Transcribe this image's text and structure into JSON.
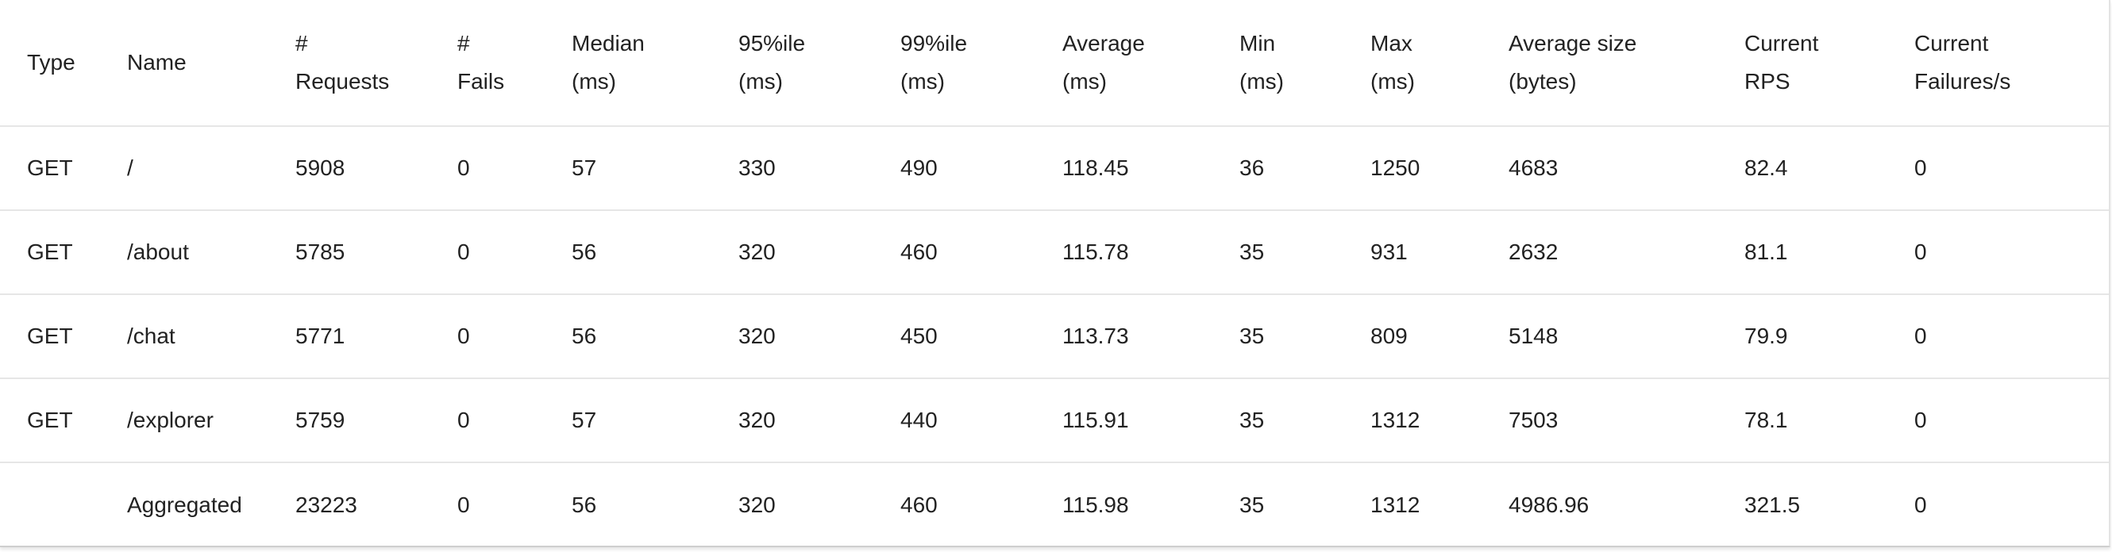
{
  "table": {
    "headers": [
      {
        "line1": "Type",
        "line2": ""
      },
      {
        "line1": "Name",
        "line2": ""
      },
      {
        "line1": "#",
        "line2": "Requests"
      },
      {
        "line1": "#",
        "line2": "Fails"
      },
      {
        "line1": "Median",
        "line2": "(ms)"
      },
      {
        "line1": "95%ile",
        "line2": "(ms)"
      },
      {
        "line1": "99%ile",
        "line2": "(ms)"
      },
      {
        "line1": "Average",
        "line2": "(ms)"
      },
      {
        "line1": "Min",
        "line2": "(ms)"
      },
      {
        "line1": "Max",
        "line2": "(ms)"
      },
      {
        "line1": "Average size",
        "line2": "(bytes)"
      },
      {
        "line1": "Current",
        "line2": "RPS"
      },
      {
        "line1": "Current",
        "line2": "Failures/s"
      }
    ],
    "rows": [
      [
        "GET",
        "/",
        "5908",
        "0",
        "57",
        "330",
        "490",
        "118.45",
        "36",
        "1250",
        "4683",
        "82.4",
        "0"
      ],
      [
        "GET",
        "/about",
        "5785",
        "0",
        "56",
        "320",
        "460",
        "115.78",
        "35",
        "931",
        "2632",
        "81.1",
        "0"
      ],
      [
        "GET",
        "/chat",
        "5771",
        "0",
        "56",
        "320",
        "450",
        "113.73",
        "35",
        "809",
        "5148",
        "79.9",
        "0"
      ],
      [
        "GET",
        "/explorer",
        "5759",
        "0",
        "57",
        "320",
        "440",
        "115.91",
        "35",
        "1312",
        "7503",
        "78.1",
        "0"
      ],
      [
        "",
        "Aggregated",
        "23223",
        "0",
        "56",
        "320",
        "460",
        "115.98",
        "35",
        "1312",
        "4986.96",
        "321.5",
        "0"
      ]
    ]
  }
}
